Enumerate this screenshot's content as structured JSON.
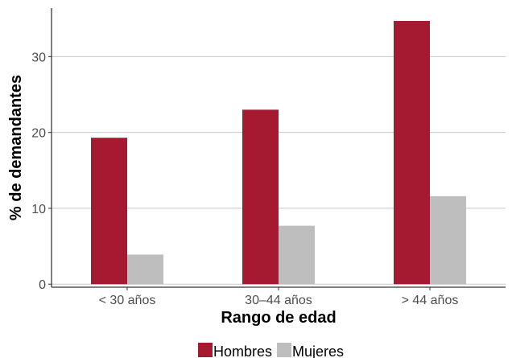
{
  "chart_data": {
    "type": "bar",
    "categories": [
      "< 30 años",
      "30–44 años",
      "> 44 años"
    ],
    "series": [
      {
        "name": "Hombres",
        "values": [
          19.3,
          23.0,
          34.7
        ],
        "color": "#A51A30"
      },
      {
        "name": "Mujeres",
        "values": [
          3.9,
          7.7,
          11.6
        ],
        "color": "#BEBEBE"
      }
    ],
    "xlabel": "Rango de edad",
    "ylabel": "% de demandantes",
    "ylim": [
      -0.4,
      36.4
    ],
    "yticks": [
      0,
      10,
      20,
      30
    ],
    "grid": "horizontal",
    "legend_position": "bottom"
  }
}
